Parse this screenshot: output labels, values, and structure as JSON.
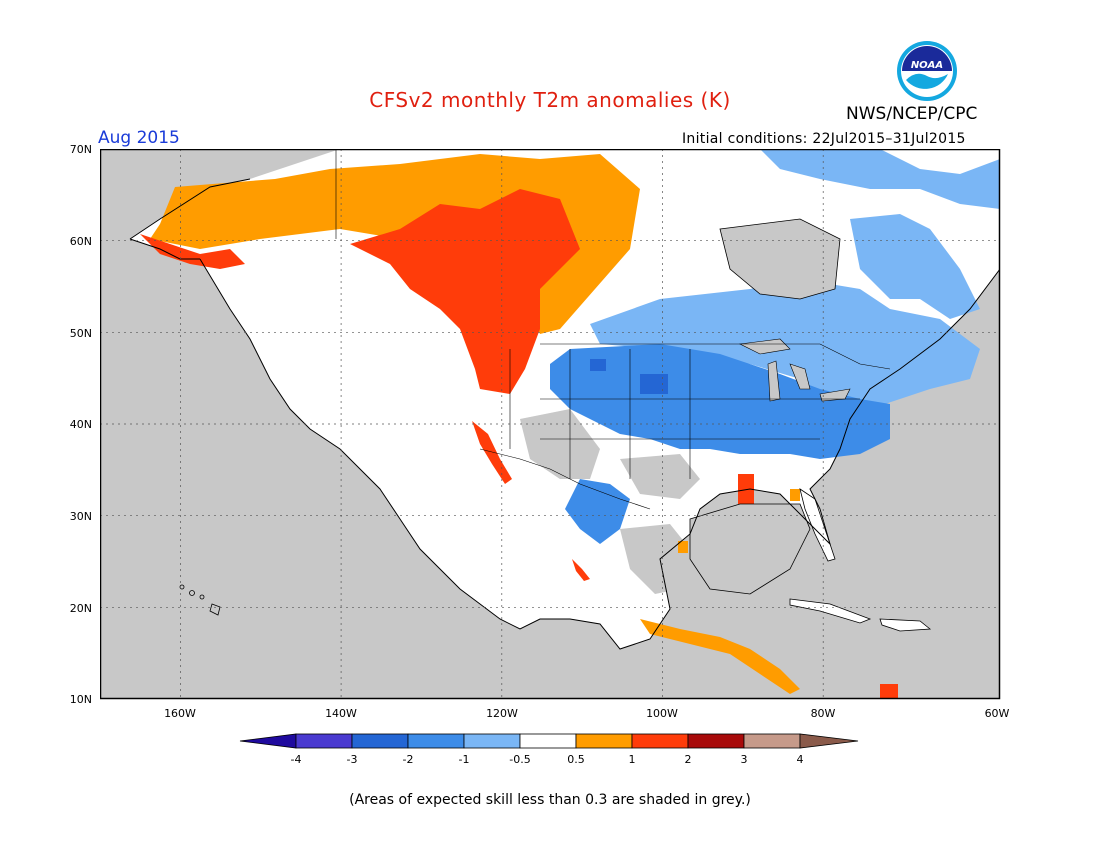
{
  "title": "CFSv2 monthly T2m anomalies (K)",
  "agency": "NWS/NCEP/CPC",
  "logo_text": "NOAA",
  "period": "Aug 2015",
  "initial_conditions": "Initial conditions: 22Jul2015–31Jul2015",
  "footnote": "(Areas of expected skill less than 0.3 are shaded in grey.)",
  "map": {
    "lon_range": [
      -172,
      -60
    ],
    "lat_range": [
      10,
      70
    ],
    "lat_labels": [
      "70N",
      "60N",
      "50N",
      "40N",
      "30N",
      "20N",
      "10N"
    ],
    "lon_labels": [
      "160W",
      "140W",
      "120W",
      "100W",
      "80W",
      "60W"
    ],
    "grid": true,
    "ocean_color": "#c8c8c8",
    "neutral_land_color": "#ffffff"
  },
  "colorbar": {
    "labels": [
      "-4",
      "-3",
      "-2",
      "-1",
      "-0.5",
      "0.5",
      "1",
      "2",
      "3",
      "4"
    ],
    "colors": [
      "#1f0a9e",
      "#4a3ad0",
      "#2466d4",
      "#3d8ce8",
      "#7ab6f5",
      "#ffffff",
      "#ff9c00",
      "#ff3c0a",
      "#a80a0a",
      "#c69a8a",
      "#8a5a4a"
    ]
  },
  "anomaly_regions": [
    {
      "name": "Alaska & NW Canada",
      "category": "0.5 to 1",
      "color": "#ff9c00"
    },
    {
      "name": "Pacific Northwest & W Canada",
      "category": "1 to 2",
      "color": "#ff3c0a"
    },
    {
      "name": "California coast",
      "category": "1 to 2",
      "color": "#ff3c0a"
    },
    {
      "name": "Central & Eastern US",
      "category": "-2 to -1",
      "color": "#3d8ce8"
    },
    {
      "name": "Great Lakes & SE Canada",
      "category": "-1 to -0.5",
      "color": "#7ab6f5"
    },
    {
      "name": "Greenland / Arctic islands",
      "category": "-1 to -0.5",
      "color": "#7ab6f5"
    },
    {
      "name": "Mexican Plateau",
      "category": "-2 to -1",
      "color": "#3d8ce8"
    },
    {
      "name": "Central America coast",
      "category": "0.5 to 1",
      "color": "#ff9c00"
    }
  ]
}
